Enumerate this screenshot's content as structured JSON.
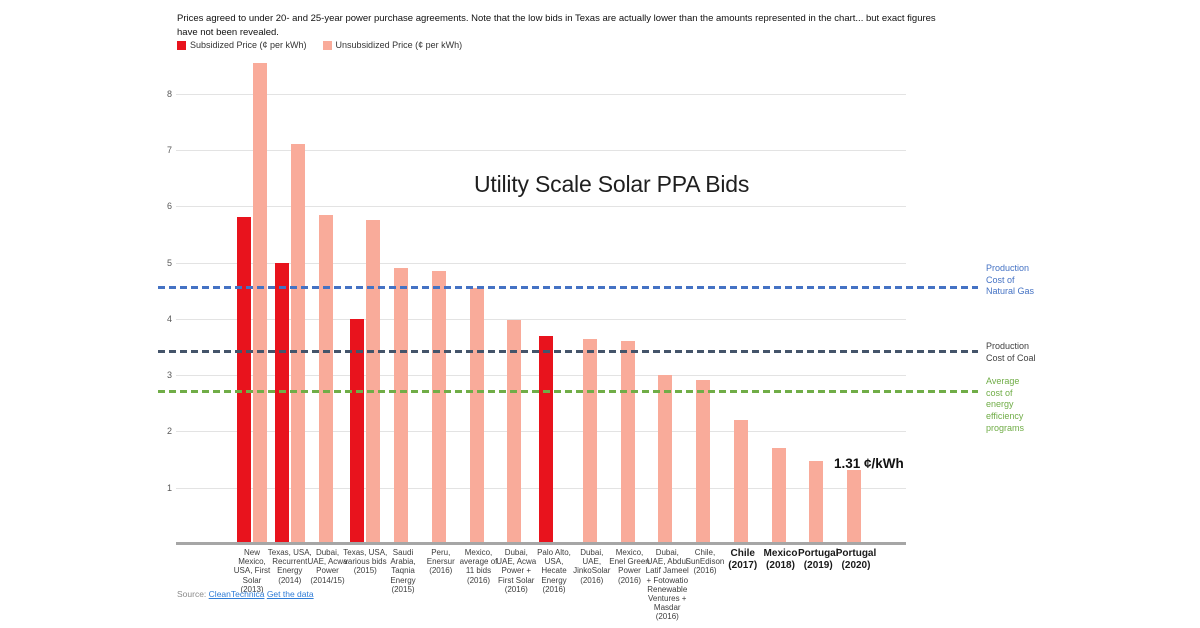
{
  "notes": "Prices agreed to under 20- and 25-year power purchase agreements. Note that the low bids in Texas are actually lower than the amounts represented in the chart... but exact figures have not been revealed.",
  "legend": [
    {
      "label": "Subsidized Price (¢ per kWh)",
      "color": "#e8131d"
    },
    {
      "label": "Unsubsidized Price (¢ per kWh)",
      "color": "#f9ab9a"
    }
  ],
  "annotation": "1.31 ¢/kWh",
  "source": {
    "prefix": "Source:",
    "link1": "CleanTechnica",
    "link2": "Get the data"
  },
  "chart_data": {
    "type": "bar",
    "title": "Utility Scale Solar PPA Bids",
    "xlabel": "",
    "ylabel": "¢ per kWh",
    "ylim": [
      0,
      8.6
    ],
    "yticks": [
      1,
      2,
      3,
      4,
      5,
      6,
      7,
      8
    ],
    "grid": true,
    "legend_position": "top-left",
    "series": [
      {
        "name": "Subsidized Price (¢ per kWh)",
        "color": "#e8131d"
      },
      {
        "name": "Unsubsidized Price (¢ per kWh)",
        "color": "#f9ab9a"
      }
    ],
    "bars": [
      {
        "category": "New Mexico, USA, First Solar (2013)",
        "subsidized": 5.8,
        "unsubsidized": 8.55,
        "emphasis": false
      },
      {
        "category": "Texas, USA, Recurrent Energy (2014)",
        "subsidized": 5.0,
        "unsubsidized": 7.1,
        "emphasis": false
      },
      {
        "category": "Dubai, UAE, Acwa Power (2014/15)",
        "subsidized": null,
        "unsubsidized": 5.85,
        "emphasis": false
      },
      {
        "category": "Texas, USA, various bids (2015)",
        "subsidized": 4.0,
        "unsubsidized": 5.75,
        "emphasis": false
      },
      {
        "category": "Saudi Arabia, Taqnia Energy (2015)",
        "subsidized": null,
        "unsubsidized": 4.9,
        "emphasis": false
      },
      {
        "category": "Peru, Enersur (2016)",
        "subsidized": null,
        "unsubsidized": 4.85,
        "emphasis": false
      },
      {
        "category": "Mexico, average of 11 bids (2016)",
        "subsidized": null,
        "unsubsidized": 4.55,
        "emphasis": false
      },
      {
        "category": "Dubai, UAE, Acwa Power + First Solar (2016)",
        "subsidized": null,
        "unsubsidized": 3.97,
        "emphasis": false
      },
      {
        "category": "Palo Alto, USA, Hecate Energy (2016)",
        "subsidized": 3.7,
        "unsubsidized": null,
        "emphasis": false
      },
      {
        "category": "Dubai, UAE, JinkoSolar (2016)",
        "subsidized": null,
        "unsubsidized": 3.65,
        "emphasis": false
      },
      {
        "category": "Mexico, Enel Green Power (2016)",
        "subsidized": null,
        "unsubsidized": 3.6,
        "emphasis": false
      },
      {
        "category": "Dubai, UAE, Abdul Latif Jameel + Fotowatio Renewable Ventures + Masdar (2016)",
        "subsidized": null,
        "unsubsidized": 3.0,
        "emphasis": false
      },
      {
        "category": "Chile, SunEdison (2016)",
        "subsidized": null,
        "unsubsidized": 2.91,
        "emphasis": false
      },
      {
        "category": "Chile (2017)",
        "subsidized": null,
        "unsubsidized": 2.2,
        "emphasis": true
      },
      {
        "category": "Mexico (2018)",
        "subsidized": null,
        "unsubsidized": 1.7,
        "emphasis": true
      },
      {
        "category": "Portugal (2019)",
        "subsidized": null,
        "unsubsidized": 1.47,
        "emphasis": true
      },
      {
        "category": "Portugal (2020)",
        "subsidized": null,
        "unsubsidized": 1.31,
        "emphasis": true
      }
    ],
    "reference_lines": [
      {
        "label": "Production Cost of Natural Gas",
        "value": 4.56,
        "color": "#4472c4"
      },
      {
        "label": "Production Cost of Coal",
        "value": 3.43,
        "color": "#44546a",
        "text_color": "#404040"
      },
      {
        "label": "Average cost of energy efficiency programs",
        "value": 2.72,
        "color": "#70ad47"
      }
    ]
  }
}
